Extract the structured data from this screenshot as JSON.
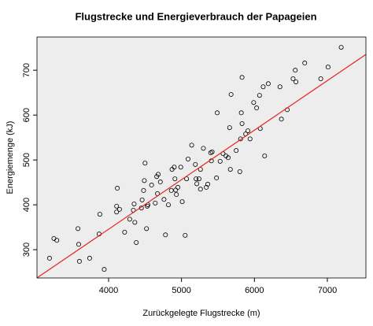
{
  "chart_data": {
    "type": "scatter",
    "title": "Flugstrecke und Energieverbrauch der Papageien",
    "x_label": "Zurückgelegte Flugstrecke (m)",
    "y_label": "Energiemenge (kJ)",
    "x": [
      3190,
      3250,
      3290,
      3580,
      3590,
      3600,
      3740,
      3880,
      3870,
      3940,
      4110,
      4120,
      4110,
      4150,
      4220,
      4290,
      4340,
      4350,
      4360,
      4380,
      4450,
      4460,
      4480,
      4490,
      4500,
      4520,
      4530,
      4540,
      4590,
      4640,
      4660,
      4670,
      4680,
      4710,
      4760,
      4780,
      4820,
      4860,
      4870,
      4900,
      4910,
      4920,
      4930,
      4950,
      4990,
      5010,
      5050,
      5070,
      5090,
      5140,
      5190,
      5200,
      5210,
      5240,
      5260,
      5260,
      5300,
      5340,
      5360,
      5400,
      5410,
      5420,
      5480,
      5490,
      5530,
      5570,
      5610,
      5640,
      5660,
      5680,
      5670,
      5750,
      5800,
      5810,
      5820,
      5830,
      5830,
      5880,
      5910,
      5940,
      5990,
      6030,
      6070,
      6080,
      6120,
      6140,
      6190,
      6350,
      6370,
      6450,
      6530,
      6560,
      6570,
      6690,
      6910,
      7010,
      7190
    ],
    "y": [
      281,
      325,
      321,
      347,
      312,
      274,
      281,
      379,
      335,
      256,
      384,
      437,
      397,
      390,
      339,
      368,
      388,
      402,
      361,
      316,
      393,
      411,
      432,
      454,
      493,
      347,
      397,
      400,
      444,
      404,
      463,
      425,
      468,
      451,
      412,
      333,
      400,
      432,
      479,
      484,
      458,
      433,
      423,
      439,
      484,
      407,
      332,
      458,
      502,
      533,
      490,
      458,
      447,
      458,
      479,
      435,
      526,
      439,
      446,
      516,
      498,
      518,
      460,
      605,
      497,
      514,
      509,
      505,
      572,
      646,
      479,
      521,
      474,
      547,
      605,
      581,
      684,
      558,
      565,
      547,
      628,
      616,
      644,
      570,
      663,
      509,
      670,
      663,
      591,
      612,
      681,
      700,
      674,
      716,
      681,
      707,
      751
    ],
    "regression": {
      "intercept": -96,
      "slope": 0.1104,
      "color": "#e8261c"
    },
    "point_color": "#000000",
    "background": "#ededed",
    "xlim": [
      3018,
      7529
    ],
    "ylim": [
      237,
      774
    ],
    "xticks": [
      4000,
      5000,
      6000,
      7000
    ],
    "yticks": [
      300,
      400,
      500,
      600,
      700
    ],
    "grid": false
  }
}
